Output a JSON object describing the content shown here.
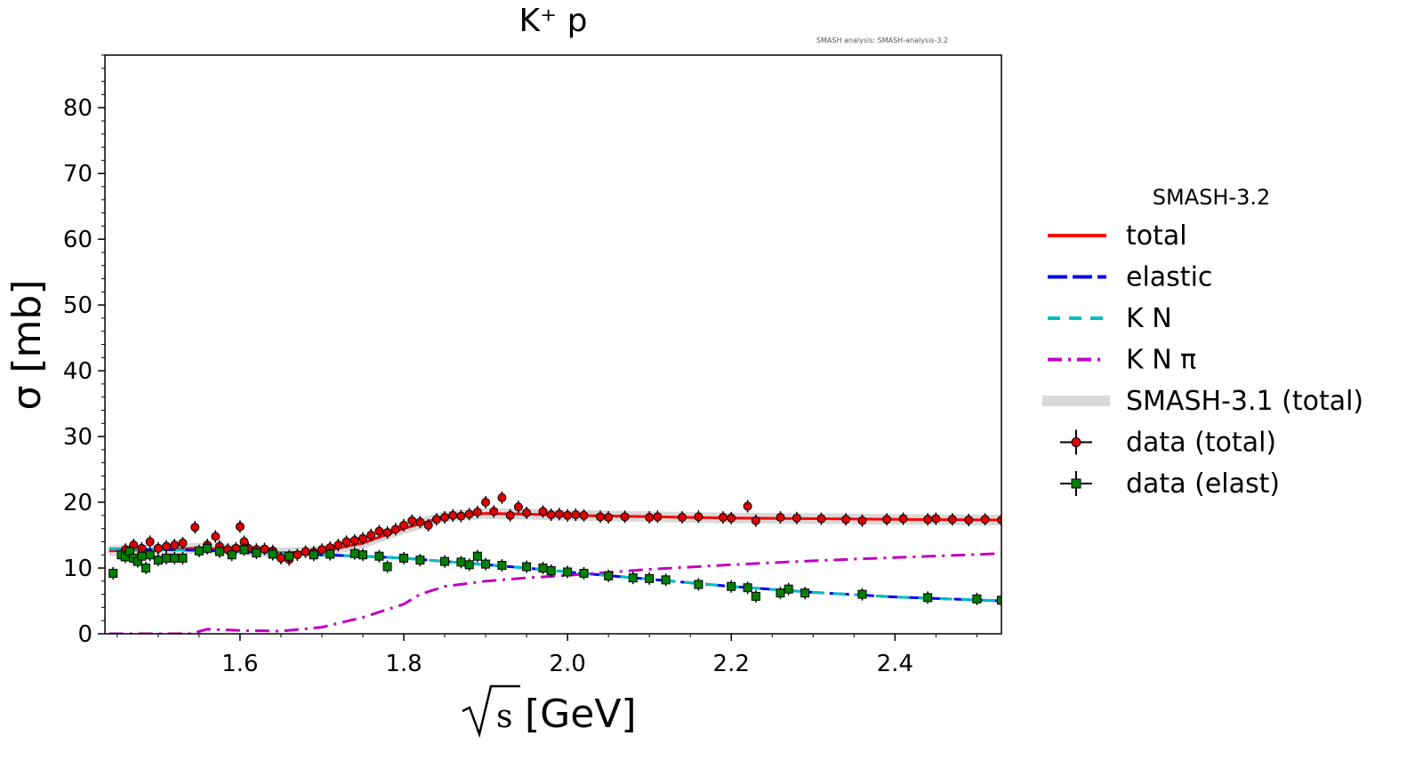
{
  "chart_data": {
    "type": "line",
    "title": "K⁺ p",
    "annotation": "SMASH analysis: SMASH-analysis-3.2",
    "xlabel_sqrt": "s",
    "xlabel_unit": "[GeV]",
    "ylabel": "σ [mb]",
    "xlim": [
      1.435,
      2.53
    ],
    "ylim": [
      0,
      88
    ],
    "xticks": [
      1.6,
      1.8,
      2.0,
      2.2,
      2.4
    ],
    "xtick_labels": [
      "1.6",
      "1.8",
      "2.0",
      "2.2",
      "2.4"
    ],
    "yticks": [
      0,
      10,
      20,
      30,
      40,
      50,
      60,
      70,
      80
    ],
    "ytick_labels": [
      "0",
      "10",
      "20",
      "30",
      "40",
      "50",
      "60",
      "70",
      "80"
    ],
    "legend_title": "SMASH-3.2",
    "legend_position": "outside-right",
    "series": [
      {
        "name": "total",
        "kind": "line",
        "color": "#ff0000",
        "dash": "solid",
        "x": [
          1.44,
          1.5,
          1.55,
          1.6,
          1.65,
          1.7,
          1.75,
          1.8,
          1.85,
          1.9,
          1.95,
          2.0,
          2.1,
          2.2,
          2.3,
          2.4,
          2.53
        ],
        "y": [
          12.6,
          12.8,
          13.0,
          12.8,
          12.3,
          12.5,
          13.8,
          16.0,
          17.8,
          18.3,
          18.2,
          18.0,
          17.8,
          17.6,
          17.5,
          17.4,
          17.3
        ]
      },
      {
        "name": "elastic",
        "kind": "line",
        "color": "#0000ee",
        "dash": "longdash",
        "x": [
          1.44,
          1.5,
          1.55,
          1.6,
          1.65,
          1.7,
          1.75,
          1.8,
          1.85,
          1.9,
          1.95,
          2.0,
          2.1,
          2.2,
          2.3,
          2.4,
          2.53
        ],
        "y": [
          12.9,
          12.8,
          12.7,
          12.5,
          12.2,
          12.0,
          11.8,
          11.5,
          11.0,
          10.5,
          10.0,
          9.4,
          8.3,
          7.2,
          6.3,
          5.6,
          5.0
        ]
      },
      {
        "name": "K N",
        "kind": "line",
        "color": "#00bfbf",
        "dash": "dash",
        "x": [
          1.44,
          1.5,
          1.55,
          1.6,
          1.65,
          1.7,
          1.75,
          1.8,
          1.85,
          1.9,
          1.95,
          2.0,
          2.1,
          2.2,
          2.3,
          2.4,
          2.53
        ],
        "y": [
          12.9,
          12.8,
          12.7,
          12.5,
          12.2,
          12.0,
          11.8,
          11.5,
          11.0,
          10.5,
          10.0,
          9.4,
          8.3,
          7.2,
          6.3,
          5.6,
          5.0
        ]
      },
      {
        "name": "K N π",
        "kind": "line",
        "color": "#bf00bf",
        "dash": "dashdot",
        "x": [
          1.44,
          1.54,
          1.56,
          1.6,
          1.65,
          1.7,
          1.75,
          1.8,
          1.82,
          1.85,
          1.9,
          1.95,
          2.0,
          2.1,
          2.2,
          2.3,
          2.4,
          2.53
        ],
        "y": [
          0,
          0,
          0.7,
          0.5,
          0.4,
          1.0,
          2.5,
          4.5,
          6.0,
          7.2,
          8.0,
          8.5,
          8.9,
          9.8,
          10.5,
          11.1,
          11.6,
          12.2
        ]
      },
      {
        "name": "SMASH-3.1 (total)",
        "kind": "band",
        "color": "#d9d9d9",
        "dash": "solid",
        "x": [
          1.44,
          1.5,
          1.55,
          1.6,
          1.65,
          1.7,
          1.75,
          1.8,
          1.85,
          1.9,
          1.95,
          2.0,
          2.1,
          2.2,
          2.3,
          2.4,
          2.53
        ],
        "y": [
          12.6,
          12.8,
          13.0,
          12.8,
          12.3,
          12.5,
          13.8,
          16.0,
          17.8,
          18.3,
          18.2,
          18.0,
          17.8,
          17.6,
          17.5,
          17.4,
          17.3
        ]
      },
      {
        "name": "data (total)",
        "kind": "points",
        "color": "#dd0000",
        "marker": "circle",
        "x": [
          1.46,
          1.47,
          1.48,
          1.49,
          1.5,
          1.51,
          1.52,
          1.53,
          1.545,
          1.56,
          1.57,
          1.575,
          1.585,
          1.595,
          1.6,
          1.605,
          1.61,
          1.62,
          1.63,
          1.64,
          1.65,
          1.66,
          1.67,
          1.68,
          1.69,
          1.7,
          1.71,
          1.72,
          1.73,
          1.74,
          1.75,
          1.76,
          1.77,
          1.78,
          1.79,
          1.8,
          1.81,
          1.82,
          1.83,
          1.84,
          1.85,
          1.86,
          1.87,
          1.88,
          1.89,
          1.9,
          1.91,
          1.92,
          1.93,
          1.94,
          1.95,
          1.97,
          1.98,
          1.99,
          2.0,
          2.01,
          2.02,
          2.04,
          2.05,
          2.07,
          2.1,
          2.11,
          2.14,
          2.16,
          2.19,
          2.2,
          2.22,
          2.23,
          2.26,
          2.28,
          2.31,
          2.34,
          2.36,
          2.39,
          2.41,
          2.44,
          2.45,
          2.47,
          2.49,
          2.51,
          2.53
        ],
        "y": [
          12.8,
          13.5,
          13.0,
          14.0,
          13.0,
          13.3,
          13.5,
          13.8,
          16.2,
          13.5,
          14.8,
          13.3,
          12.8,
          13.0,
          16.3,
          14.0,
          13.0,
          12.8,
          12.9,
          12.6,
          11.5,
          11.3,
          12.0,
          12.5,
          12.4,
          12.8,
          13.1,
          13.5,
          14.0,
          14.2,
          14.5,
          15.0,
          15.6,
          15.4,
          15.9,
          16.5,
          17.2,
          17.0,
          16.5,
          17.4,
          17.7,
          18.0,
          17.9,
          18.2,
          18.5,
          20.0,
          18.6,
          20.7,
          18.0,
          19.3,
          18.4,
          18.6,
          18.1,
          18.2,
          18.0,
          18.1,
          18.0,
          17.8,
          17.7,
          17.8,
          17.7,
          17.8,
          17.7,
          17.8,
          17.7,
          17.6,
          19.4,
          17.2,
          17.7,
          17.6,
          17.5,
          17.4,
          17.2,
          17.4,
          17.5,
          17.4,
          17.5,
          17.4,
          17.3,
          17.4,
          17.3
        ]
      },
      {
        "name": "data (elast)",
        "kind": "points",
        "color": "#008000",
        "marker": "square",
        "x": [
          1.445,
          1.455,
          1.46,
          1.465,
          1.47,
          1.475,
          1.48,
          1.485,
          1.49,
          1.5,
          1.51,
          1.52,
          1.53,
          1.55,
          1.56,
          1.575,
          1.59,
          1.605,
          1.62,
          1.64,
          1.66,
          1.69,
          1.71,
          1.74,
          1.75,
          1.77,
          1.78,
          1.8,
          1.82,
          1.85,
          1.87,
          1.88,
          1.89,
          1.9,
          1.92,
          1.95,
          1.97,
          1.98,
          2.0,
          2.02,
          2.05,
          2.08,
          2.1,
          2.12,
          2.16,
          2.2,
          2.22,
          2.23,
          2.26,
          2.27,
          2.29,
          2.36,
          2.44,
          2.5,
          2.53
        ],
        "y": [
          9.2,
          12.0,
          11.7,
          12.5,
          11.5,
          11.0,
          11.8,
          10.0,
          12.0,
          11.2,
          11.5,
          11.5,
          11.5,
          12.6,
          13.0,
          12.5,
          12.0,
          12.8,
          12.3,
          12.1,
          11.8,
          12.0,
          12.1,
          12.2,
          12.0,
          11.8,
          10.2,
          11.5,
          11.2,
          11.0,
          10.9,
          10.5,
          11.8,
          10.6,
          10.4,
          10.2,
          10.0,
          9.6,
          9.4,
          9.2,
          8.8,
          8.5,
          8.4,
          8.2,
          7.5,
          7.2,
          7.0,
          5.7,
          6.2,
          6.8,
          6.2,
          6.0,
          5.5,
          5.3,
          5.1
        ]
      }
    ],
    "legend": {
      "title": "SMASH-3.2",
      "items": [
        "total",
        "elastic",
        "K N",
        "K N π",
        "SMASH-3.1 (total)",
        "data (total)",
        "data (elast)"
      ]
    }
  }
}
